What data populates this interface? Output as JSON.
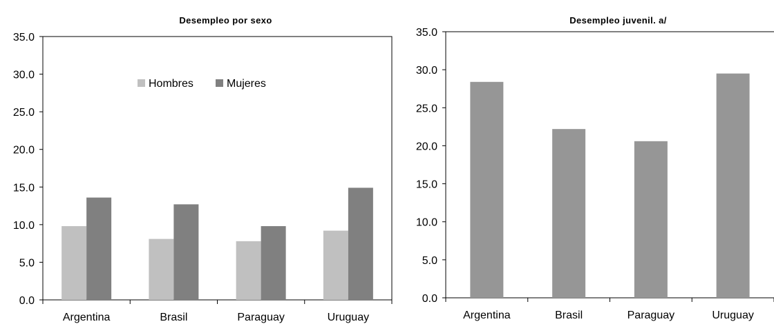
{
  "chart_data": [
    {
      "type": "bar",
      "title": "Desempleo por sexo",
      "categories": [
        "Argentina",
        "Brasil",
        "Paraguay",
        "Uruguay"
      ],
      "series": [
        {
          "name": "Hombres",
          "values": [
            9.8,
            8.1,
            7.8,
            9.2
          ],
          "color": "#c0c0c0"
        },
        {
          "name": "Mujeres",
          "values": [
            13.6,
            12.7,
            9.8,
            14.9
          ],
          "color": "#808080"
        }
      ],
      "ylim": [
        0,
        35
      ],
      "yticks": [
        "0.0",
        "5.0",
        "10.0",
        "15.0",
        "20.0",
        "25.0",
        "30.0",
        "35.0"
      ],
      "xlabel": "",
      "ylabel": "",
      "legend": "inside-top-center",
      "grid": false
    },
    {
      "type": "bar",
      "title": "Desempleo juvenil. a/",
      "categories": [
        "Argentina",
        "Brasil",
        "Paraguay",
        "Uruguay"
      ],
      "series": [
        {
          "values": [
            28.4,
            22.2,
            20.6,
            29.5
          ],
          "color": "#969696"
        }
      ],
      "ylim": [
        0,
        35
      ],
      "yticks": [
        "0.0",
        "5.0",
        "10.0",
        "15.0",
        "20.0",
        "25.0",
        "30.0",
        "35.0"
      ],
      "xlabel": "",
      "ylabel": "",
      "grid": false
    }
  ]
}
